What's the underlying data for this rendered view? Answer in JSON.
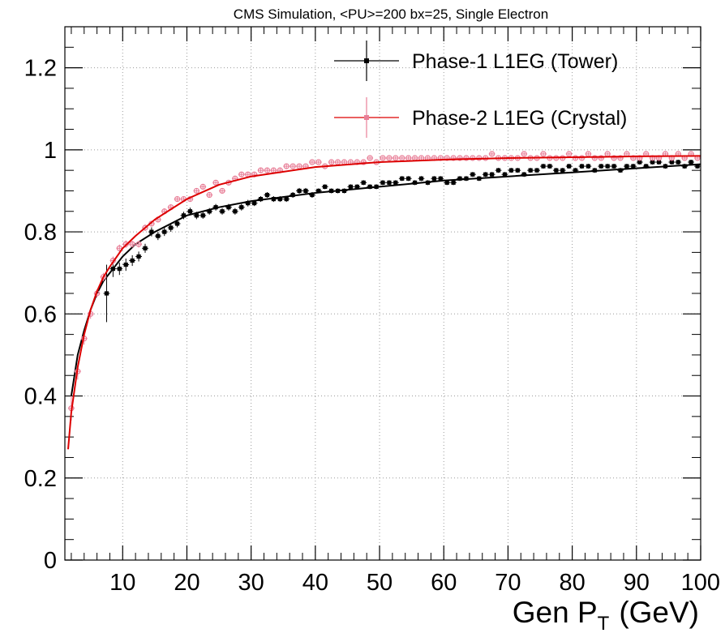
{
  "chart_data": {
    "type": "scatter",
    "title": "CMS Simulation, <PU>=200 bx=25, Single Electron",
    "xlabel": "Gen P",
    "xlabel_sub": "T",
    "xlabel_unit": "(GeV)",
    "ylabel": "",
    "xlim": [
      1,
      100
    ],
    "ylim": [
      0,
      1.3
    ],
    "x_ticks": [
      10,
      20,
      30,
      40,
      50,
      60,
      70,
      80,
      90,
      100
    ],
    "y_ticks": [
      0,
      0.2,
      0.4,
      0.6,
      0.8,
      1,
      1.2
    ],
    "y_tick_labels": [
      "0",
      "0.2",
      "0.4",
      "0.6",
      "0.8",
      "1",
      "1.2"
    ],
    "grid": true,
    "legend_position": "top-right",
    "series": [
      {
        "name": "Phase-1 L1EG (Tower)",
        "color": "#000000",
        "x": [
          7.5,
          8.5,
          9.5,
          10.5,
          11.5,
          12.5,
          13.5,
          14.5,
          15.5,
          16.5,
          17.5,
          18.5,
          19.5,
          20.5,
          21.5,
          22.5,
          23.5,
          24.5,
          25.5,
          26.5,
          27.5,
          28.5,
          29.5,
          30.5,
          31.5,
          32.5,
          33.5,
          34.5,
          35.5,
          36.5,
          37.5,
          38.5,
          39.5,
          40.5,
          41.5,
          42.5,
          43.5,
          44.5,
          45.5,
          46.5,
          47.5,
          48.5,
          49.5,
          50.5,
          51.5,
          52.5,
          53.5,
          54.5,
          55.5,
          56.5,
          57.5,
          58.5,
          59.5,
          60.5,
          61.5,
          62.5,
          63.5,
          64.5,
          65.5,
          66.5,
          67.5,
          68.5,
          69.5,
          70.5,
          71.5,
          72.5,
          73.5,
          74.5,
          75.5,
          76.5,
          77.5,
          78.5,
          79.5,
          80.5,
          81.5,
          82.5,
          83.5,
          84.5,
          85.5,
          86.5,
          87.5,
          88.5,
          89.5,
          90.5,
          91.5,
          92.5,
          93.5,
          94.5,
          95.5,
          96.5,
          97.5,
          98.5,
          99.5
        ],
        "y": [
          0.65,
          0.71,
          0.71,
          0.72,
          0.73,
          0.74,
          0.76,
          0.8,
          0.79,
          0.8,
          0.81,
          0.82,
          0.84,
          0.85,
          0.84,
          0.84,
          0.85,
          0.86,
          0.85,
          0.86,
          0.85,
          0.86,
          0.87,
          0.87,
          0.88,
          0.89,
          0.88,
          0.88,
          0.88,
          0.89,
          0.9,
          0.9,
          0.89,
          0.9,
          0.91,
          0.9,
          0.9,
          0.9,
          0.91,
          0.91,
          0.92,
          0.91,
          0.91,
          0.92,
          0.92,
          0.92,
          0.93,
          0.93,
          0.92,
          0.93,
          0.92,
          0.93,
          0.93,
          0.92,
          0.92,
          0.93,
          0.93,
          0.94,
          0.93,
          0.94,
          0.94,
          0.95,
          0.94,
          0.95,
          0.95,
          0.94,
          0.95,
          0.95,
          0.96,
          0.96,
          0.95,
          0.95,
          0.96,
          0.95,
          0.96,
          0.96,
          0.95,
          0.96,
          0.96,
          0.96,
          0.95,
          0.96,
          0.96,
          0.97,
          0.96,
          0.97,
          0.97,
          0.96,
          0.97,
          0.97,
          0.96,
          0.97,
          0.96
        ],
        "yerr": [
          0.07,
          0.02,
          0.015,
          0.015,
          0.013,
          0.012,
          0.011,
          0.011,
          0.01,
          0.01,
          0.01,
          0.009,
          0.009,
          0.009,
          0.009,
          0.008,
          0.008,
          0.008,
          0.008,
          0.008,
          0.008,
          0.008,
          0.008,
          0.007,
          0.007,
          0.007,
          0.007,
          0.007,
          0.007,
          0.007,
          0.007,
          0.007,
          0.007,
          0.006,
          0.006,
          0.006,
          0.006,
          0.006,
          0.006,
          0.006,
          0.006,
          0.006,
          0.006,
          0.006,
          0.006,
          0.006,
          0.006,
          0.006,
          0.006,
          0.006,
          0.006,
          0.006,
          0.006,
          0.006,
          0.006,
          0.006,
          0.006,
          0.006,
          0.006,
          0.006,
          0.006,
          0.006,
          0.006,
          0.006,
          0.006,
          0.006,
          0.006,
          0.006,
          0.006,
          0.006,
          0.006,
          0.006,
          0.006,
          0.006,
          0.006,
          0.006,
          0.006,
          0.006,
          0.006,
          0.006,
          0.006,
          0.006,
          0.006,
          0.006,
          0.006,
          0.006,
          0.006,
          0.006,
          0.006,
          0.006,
          0.006,
          0.006,
          0.006
        ],
        "fit_x": [
          2,
          3,
          4,
          5,
          6,
          7,
          8,
          10,
          12,
          15,
          20,
          25,
          30,
          40,
          50,
          60,
          70,
          80,
          90,
          100
        ],
        "fit_y": [
          0.4,
          0.5,
          0.56,
          0.61,
          0.65,
          0.68,
          0.7,
          0.74,
          0.77,
          0.8,
          0.84,
          0.86,
          0.875,
          0.895,
          0.91,
          0.925,
          0.935,
          0.945,
          0.955,
          0.965
        ]
      },
      {
        "name": "Phase-2 L1EG (Crystal)",
        "color": "#dd0000",
        "marker_color": "#e87f98",
        "x": [
          2,
          3,
          4,
          5,
          6,
          7,
          8.5,
          9.5,
          10.5,
          11.5,
          12.5,
          13.5,
          14.5,
          15.5,
          16.5,
          17.5,
          18.5,
          19.5,
          20.5,
          21.5,
          22.5,
          23.5,
          24.5,
          25.5,
          26.5,
          27.5,
          28.5,
          29.5,
          30.5,
          31.5,
          32.5,
          33.5,
          34.5,
          35.5,
          36.5,
          37.5,
          38.5,
          39.5,
          40.5,
          41.5,
          42.5,
          43.5,
          44.5,
          45.5,
          46.5,
          47.5,
          48.5,
          49.5,
          50.5,
          51.5,
          52.5,
          53.5,
          54.5,
          55.5,
          56.5,
          57.5,
          58.5,
          59.5,
          60.5,
          61.5,
          62.5,
          63.5,
          64.5,
          65.5,
          66.5,
          67.5,
          68.5,
          69.5,
          70.5,
          71.5,
          72.5,
          73.5,
          74.5,
          75.5,
          76.5,
          77.5,
          78.5,
          79.5,
          80.5,
          81.5,
          82.5,
          83.5,
          84.5,
          85.5,
          86.5,
          87.5,
          88.5,
          89.5,
          90.5,
          91.5,
          92.5,
          93.5,
          94.5,
          95.5,
          96.5,
          97.5,
          98.5,
          99.5
        ],
        "y": [
          0.37,
          0.46,
          0.54,
          0.6,
          0.65,
          0.69,
          0.73,
          0.76,
          0.77,
          0.77,
          0.77,
          0.81,
          0.82,
          0.83,
          0.85,
          0.86,
          0.88,
          0.88,
          0.88,
          0.9,
          0.91,
          0.89,
          0.92,
          0.9,
          0.92,
          0.93,
          0.94,
          0.94,
          0.94,
          0.95,
          0.95,
          0.95,
          0.95,
          0.96,
          0.96,
          0.96,
          0.96,
          0.97,
          0.97,
          0.96,
          0.97,
          0.97,
          0.97,
          0.97,
          0.97,
          0.97,
          0.98,
          0.97,
          0.98,
          0.98,
          0.98,
          0.98,
          0.98,
          0.98,
          0.98,
          0.98,
          0.98,
          0.98,
          0.98,
          0.98,
          0.98,
          0.98,
          0.98,
          0.98,
          0.98,
          0.99,
          0.98,
          0.98,
          0.98,
          0.98,
          0.99,
          0.98,
          0.98,
          0.99,
          0.98,
          0.98,
          0.98,
          0.99,
          0.98,
          0.98,
          0.99,
          0.98,
          0.98,
          0.99,
          0.98,
          0.98,
          0.99,
          0.98,
          0.98,
          0.99,
          0.98,
          0.98,
          0.99,
          0.98,
          0.99,
          0.98,
          0.99,
          0.98
        ],
        "yerr": [
          0.03,
          0.02,
          0.015,
          0.012,
          0.01,
          0.01,
          0.01,
          0.009,
          0.009,
          0.008,
          0.008,
          0.008,
          0.007,
          0.007,
          0.007,
          0.007,
          0.006,
          0.006,
          0.006,
          0.006,
          0.006,
          0.006,
          0.006,
          0.005,
          0.005,
          0.005,
          0.005,
          0.005,
          0.005,
          0.005,
          0.005,
          0.005,
          0.005,
          0.005,
          0.004,
          0.004,
          0.004,
          0.004,
          0.004,
          0.004,
          0.004,
          0.004,
          0.004,
          0.004,
          0.004,
          0.004,
          0.004,
          0.004,
          0.004,
          0.004,
          0.004,
          0.004,
          0.004,
          0.004,
          0.004,
          0.004,
          0.004,
          0.004,
          0.004,
          0.004,
          0.004,
          0.004,
          0.004,
          0.004,
          0.004,
          0.004,
          0.004,
          0.004,
          0.004,
          0.004,
          0.004,
          0.004,
          0.004,
          0.004,
          0.004,
          0.004,
          0.004,
          0.004,
          0.004,
          0.004,
          0.004,
          0.004,
          0.004,
          0.004,
          0.004,
          0.004,
          0.004,
          0.004,
          0.004,
          0.004,
          0.004,
          0.004,
          0.004,
          0.004,
          0.004,
          0.004,
          0.004,
          0.004
        ],
        "fit_x": [
          1.5,
          2,
          3,
          4,
          5,
          6,
          7,
          8,
          10,
          12,
          15,
          20,
          25,
          30,
          40,
          50,
          60,
          70,
          80,
          90,
          100
        ],
        "fit_y": [
          0.27,
          0.36,
          0.47,
          0.55,
          0.61,
          0.655,
          0.69,
          0.715,
          0.76,
          0.79,
          0.83,
          0.88,
          0.915,
          0.935,
          0.958,
          0.97,
          0.976,
          0.98,
          0.982,
          0.984,
          0.985
        ]
      }
    ]
  }
}
